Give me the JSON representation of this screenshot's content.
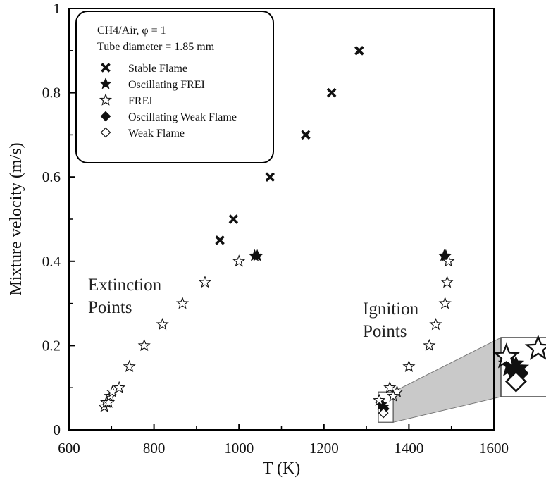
{
  "chart_data": {
    "type": "scatter",
    "xlabel": "T (K)",
    "ylabel": "Mixture velocity (m/s)",
    "xlim": [
      600,
      1600
    ],
    "ylim": [
      0,
      1
    ],
    "x_ticks": [
      600,
      800,
      1000,
      1200,
      1400,
      1600
    ],
    "y_ticks": [
      0,
      0.2,
      0.4,
      0.6,
      0.8,
      1
    ],
    "legend_header": [
      "CH4/Air, φ = 1",
      "Tube diameter = 1.85 mm"
    ],
    "legend_position": "top-left",
    "series": [
      {
        "name": "Stable Flame",
        "marker": "x",
        "points": [
          [
            955,
            0.45
          ],
          [
            987,
            0.5
          ],
          [
            1073,
            0.6
          ],
          [
            1157,
            0.7
          ],
          [
            1218,
            0.8
          ],
          [
            1283,
            0.9
          ]
        ]
      },
      {
        "name": "Oscillating FREI",
        "marker": "star-filled",
        "points": [
          [
            1037,
            0.413
          ],
          [
            1043,
            0.413
          ],
          [
            1483,
            0.413
          ],
          [
            1487,
            0.413
          ],
          [
            1335,
            0.06
          ],
          [
            1340,
            0.055
          ]
        ]
      },
      {
        "name": "FREI",
        "marker": "star-open",
        "points": [
          [
            683,
            0.055
          ],
          [
            688,
            0.065
          ],
          [
            693,
            0.065
          ],
          [
            697,
            0.08
          ],
          [
            702,
            0.09
          ],
          [
            718,
            0.1
          ],
          [
            742,
            0.15
          ],
          [
            777,
            0.2
          ],
          [
            820,
            0.25
          ],
          [
            867,
            0.3
          ],
          [
            920,
            0.35
          ],
          [
            1000,
            0.4
          ],
          [
            1493,
            0.4
          ],
          [
            1490,
            0.35
          ],
          [
            1485,
            0.3
          ],
          [
            1463,
            0.25
          ],
          [
            1448,
            0.2
          ],
          [
            1400,
            0.15
          ],
          [
            1355,
            0.1
          ],
          [
            1372,
            0.09
          ],
          [
            1363,
            0.08
          ],
          [
            1330,
            0.07
          ]
        ]
      },
      {
        "name": "Oscillating Weak Flame",
        "marker": "diamond-filled",
        "points": [
          [
            1342,
            0.05
          ]
        ]
      },
      {
        "name": "Weak Flame",
        "marker": "diamond-open",
        "points": [
          [
            1340,
            0.04
          ]
        ]
      }
    ],
    "annotations": [
      {
        "lines": [
          "Extinction",
          "Points"
        ]
      },
      {
        "lines": [
          "Ignition",
          "Points"
        ]
      }
    ],
    "inset": {
      "description_region_x": [
        1328,
        1363
      ],
      "description_region_y": [
        0.018,
        0.09
      ]
    }
  }
}
